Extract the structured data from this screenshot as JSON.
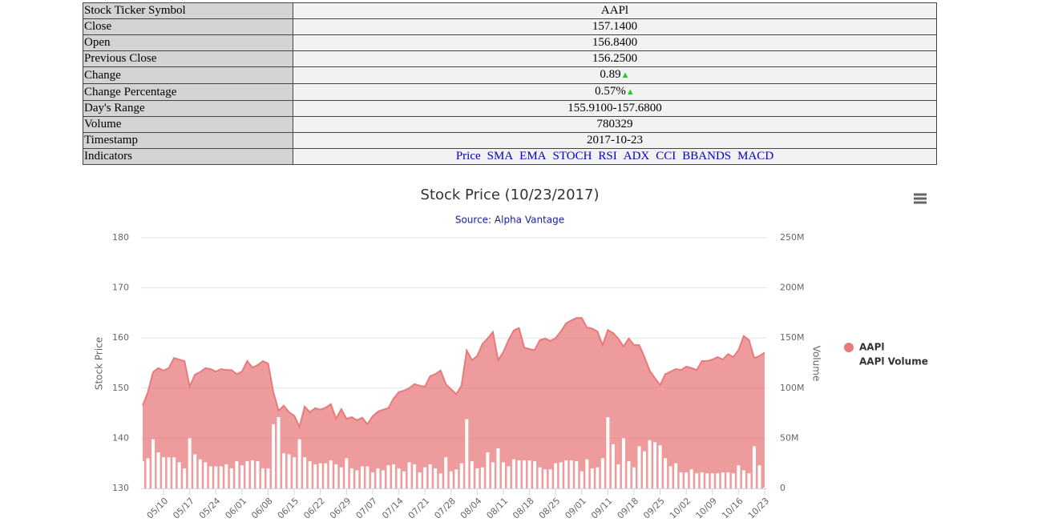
{
  "table": {
    "rows": [
      [
        "Stock Ticker Symbol",
        "AAPl"
      ],
      [
        "Close",
        "157.1400"
      ],
      [
        "Open",
        "156.8400"
      ],
      [
        "Previous Close",
        "156.2500"
      ],
      [
        "Change",
        "0.89"
      ],
      [
        "Change Percentage",
        "0.57%"
      ],
      [
        "Day's Range",
        "155.9100-157.6800"
      ],
      [
        "Volume",
        "780329"
      ],
      [
        "Timestamp",
        "2017-10-23"
      ]
    ],
    "indicators_label": "Indicators",
    "indicators": [
      "Price",
      "SMA",
      "EMA",
      "STOCH",
      "RSI",
      "ADX",
      "CCI",
      "BBANDS",
      "MACD"
    ]
  },
  "chart_data": {
    "type": "area",
    "title": "Stock Price (10/23/2017)",
    "subtitle": "Source: Alpha Vantage",
    "ylabel": "Stock Price",
    "y2label": "Volume",
    "grid": true,
    "legend": "right",
    "ylim": [
      130,
      180
    ],
    "yticks": [
      130,
      140,
      150,
      160,
      170,
      180
    ],
    "y2lim": [
      0,
      250
    ],
    "y2ticks": [
      0,
      {
        "value": 50,
        "label": "50M"
      },
      {
        "value": 100,
        "label": "100M"
      },
      {
        "value": 150,
        "label": "150M"
      },
      {
        "value": 200,
        "label": "200M"
      },
      {
        "value": 250,
        "label": "250M"
      }
    ],
    "categories": [
      null,
      null,
      null,
      null,
      "05/10",
      null,
      null,
      null,
      null,
      "05/17",
      null,
      null,
      null,
      null,
      "05/24",
      null,
      null,
      null,
      null,
      "06/01",
      null,
      null,
      null,
      null,
      "06/08",
      null,
      null,
      null,
      null,
      "06/15",
      null,
      null,
      null,
      null,
      "06/22",
      null,
      null,
      null,
      null,
      "06/29",
      null,
      null,
      null,
      null,
      "07/07",
      null,
      null,
      null,
      null,
      "07/14",
      null,
      null,
      null,
      null,
      "07/21",
      null,
      null,
      null,
      null,
      "07/28",
      null,
      null,
      null,
      null,
      "08/04",
      null,
      null,
      null,
      null,
      "08/11",
      null,
      null,
      null,
      null,
      "08/18",
      null,
      null,
      null,
      null,
      "08/25",
      null,
      null,
      null,
      null,
      "09/01",
      null,
      null,
      null,
      null,
      "09/11",
      null,
      null,
      null,
      null,
      "09/18",
      null,
      null,
      null,
      null,
      "09/25",
      null,
      null,
      null,
      null,
      "10/02",
      null,
      null,
      null,
      null,
      "10/09",
      null,
      null,
      null,
      null,
      "10/16",
      null,
      null,
      null,
      null,
      "10/23"
    ],
    "series": [
      {
        "name": "AAPl",
        "type": "area",
        "color": "#e87a7c",
        "values": [
          146.5,
          149.2,
          153.2,
          154,
          153.5,
          154,
          156,
          155.7,
          155.4,
          150.3,
          152.7,
          153.2,
          154,
          153.8,
          153.3,
          153.8,
          153.6,
          153.6,
          152.8,
          153.3,
          155.4,
          154.1,
          154.6,
          155.4,
          154.9,
          149.2,
          145.5,
          146.5,
          145.2,
          144.5,
          142.3,
          146.3,
          145.2,
          146,
          145.7,
          146.1,
          146.8,
          143.9,
          145.8,
          143.9,
          144.2,
          143.6,
          144.1,
          142.8,
          144.4,
          145.3,
          145.7,
          146,
          147.9,
          149.2,
          149.5,
          150,
          150.8,
          150.5,
          150.3,
          152.4,
          152.8,
          153.5,
          150.8,
          149.8,
          148.8,
          150.5,
          157.5,
          155.6,
          156.4,
          158.8,
          159.9,
          161.2,
          155.6,
          157.2,
          159.6,
          161.5,
          162,
          158.1,
          157.8,
          157.6,
          159.6,
          159.9,
          159.4,
          160,
          161.3,
          162.9,
          163.5,
          164,
          164,
          162.1,
          161.9,
          161.3,
          158.6,
          161.6,
          161,
          159.9,
          158.3,
          159.9,
          158.6,
          158.6,
          156.2,
          153.5,
          152,
          150.6,
          152.8,
          153.3,
          153.8,
          153.6,
          154.3,
          154,
          153.6,
          155.4,
          155.4,
          155.7,
          156.2,
          155.7,
          156.8,
          156.2,
          157.6,
          160.4,
          159.6,
          156,
          156.4,
          157.1
        ]
      },
      {
        "name": "AAPl Volume",
        "type": "column",
        "axis": "y2",
        "color": "#ffffff",
        "values": [
          27,
          30,
          49,
          36,
          31,
          31,
          31,
          26,
          20,
          50,
          34,
          29,
          26,
          22,
          22,
          22,
          24,
          20,
          27,
          23,
          27,
          28,
          27,
          20,
          20,
          64,
          71,
          35,
          34,
          31,
          49,
          31,
          27,
          24,
          25,
          25,
          28,
          24,
          21,
          30,
          20,
          18,
          22,
          22,
          16,
          20,
          18,
          23,
          24,
          20,
          17,
          26,
          24,
          16,
          21,
          24,
          20,
          15,
          31,
          17,
          19,
          25,
          69,
          27,
          20,
          21,
          36,
          26,
          40,
          26,
          22,
          29,
          28,
          28,
          28,
          27,
          21,
          19,
          19,
          25,
          26,
          28,
          28,
          27,
          17,
          29,
          20,
          21,
          30,
          71,
          44,
          24,
          50,
          27,
          21,
          42,
          37,
          48,
          46,
          43,
          30,
          22,
          25,
          16,
          16,
          19,
          15,
          16,
          15,
          15,
          15,
          16,
          16,
          15,
          23,
          18,
          15,
          42,
          23,
          0.78
        ]
      }
    ]
  }
}
